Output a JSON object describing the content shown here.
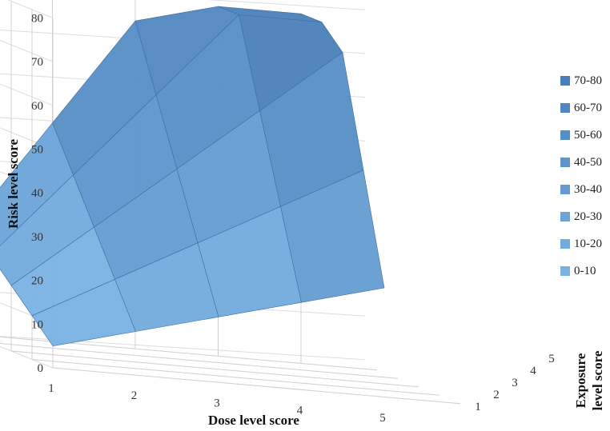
{
  "chart_data": {
    "type": "3d-surface",
    "xlabel": "Dose level score",
    "ylabel": "Risk level score",
    "zlabel_lines": [
      "Exposure",
      "level score"
    ],
    "x_ticks": [
      "1",
      "2",
      "3",
      "4",
      "5"
    ],
    "z_ticks": [
      "1",
      "2",
      "3",
      "4",
      "5"
    ],
    "y_ticks": [
      "0",
      "10",
      "20",
      "30",
      "40",
      "50",
      "60",
      "70",
      "80"
    ],
    "ylim": [
      0,
      80
    ],
    "legend": [
      "70-80",
      "60-70",
      "50-60",
      "40-50",
      "30-40",
      "20-30",
      "10-20",
      "0-10"
    ],
    "legend_colors": [
      "#4a7fb8",
      "#5087c0",
      "#568ec6",
      "#5d95cc",
      "#649cd2",
      "#6ba4d8",
      "#72abdd",
      "#79b2e2"
    ],
    "surface_values": [
      [
        5,
        10,
        15,
        20,
        25
      ],
      [
        10,
        20,
        30,
        40,
        50
      ],
      [
        15,
        30,
        45,
        60,
        75
      ],
      [
        20,
        40,
        60,
        80,
        80
      ],
      [
        25,
        50,
        75,
        80,
        80
      ]
    ],
    "grid": true
  }
}
